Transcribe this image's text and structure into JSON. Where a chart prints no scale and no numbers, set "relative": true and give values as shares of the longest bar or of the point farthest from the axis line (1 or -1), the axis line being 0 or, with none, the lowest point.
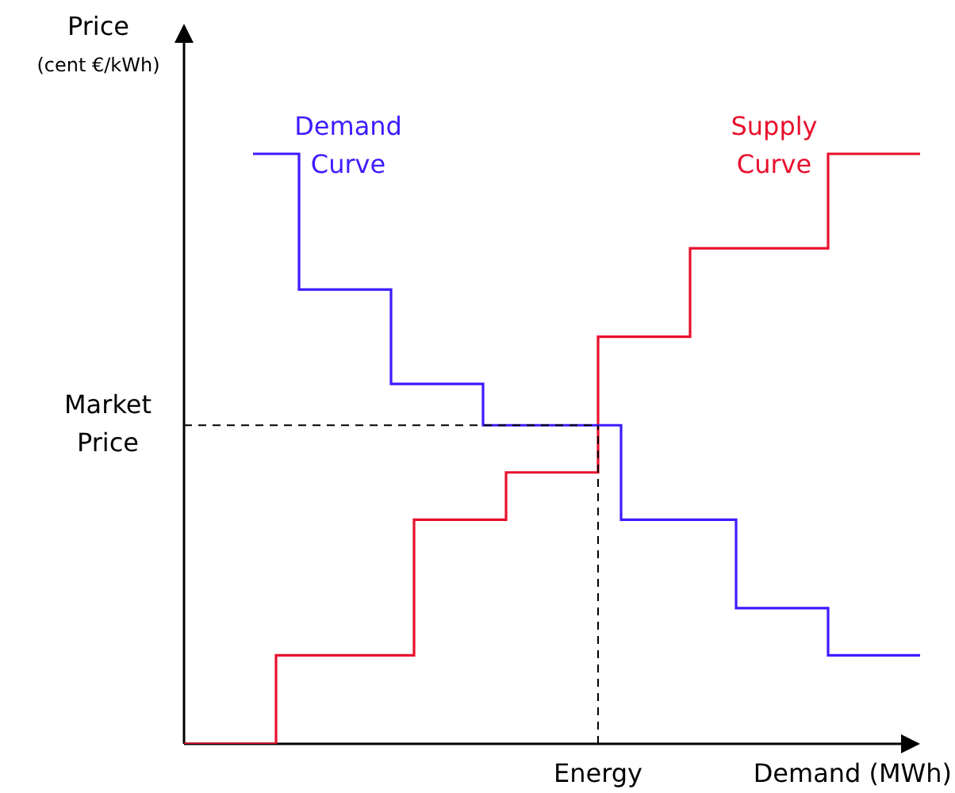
{
  "chart_data": {
    "type": "step",
    "relative": true,
    "ylabel": "Price\n(cent €/kWh)",
    "xlabel": "Demand (MWh)",
    "tick_labels": false,
    "legend": false,
    "categories": [
      null,
      null,
      null,
      null,
      null,
      null,
      null,
      null,
      null,
      null,
      null,
      null,
      null,
      null,
      null,
      null,
      null,
      null,
      null,
      null,
      null,
      null,
      null,
      null,
      null,
      null,
      null,
      null,
      null,
      null,
      null,
      null,
      null
    ],
    "series": [
      {
        "name": "Demand\nCurve",
        "color": "#3c1cff",
        "values": [
          null,
          null,
          null,
          1,
          1,
          0.77,
          0.77,
          0.77,
          0.77,
          0.61,
          0.61,
          0.61,
          0.61,
          0.54,
          0.54,
          0.54,
          0.54,
          0.54,
          0.54,
          0.38,
          0.38,
          0.38,
          0.38,
          0.38,
          0.23,
          0.23,
          0.23,
          0.23,
          0.15,
          0.15,
          0.15,
          0.15,
          0.15
        ]
      },
      {
        "name": "Supply\nCurve",
        "color": "#e8102c",
        "values": [
          0,
          0,
          0,
          0,
          0.15,
          0.15,
          0.15,
          0.15,
          0.15,
          0.15,
          0.38,
          0.38,
          0.38,
          0.38,
          0.46,
          0.46,
          0.46,
          0.46,
          0.69,
          0.69,
          0.69,
          0.69,
          0.84,
          0.84,
          0.84,
          0.84,
          0.84,
          0.84,
          1,
          1,
          1,
          1,
          1
        ]
      }
    ],
    "ref_lines": [
      {
        "axis": "y",
        "value": 0.54,
        "label": "Market\nPrice",
        "color": "#000000",
        "line_style": "dashed"
      },
      {
        "axis": "x",
        "label": "Energy",
        "color": "#000000",
        "line_style": "dashed"
      }
    ]
  }
}
